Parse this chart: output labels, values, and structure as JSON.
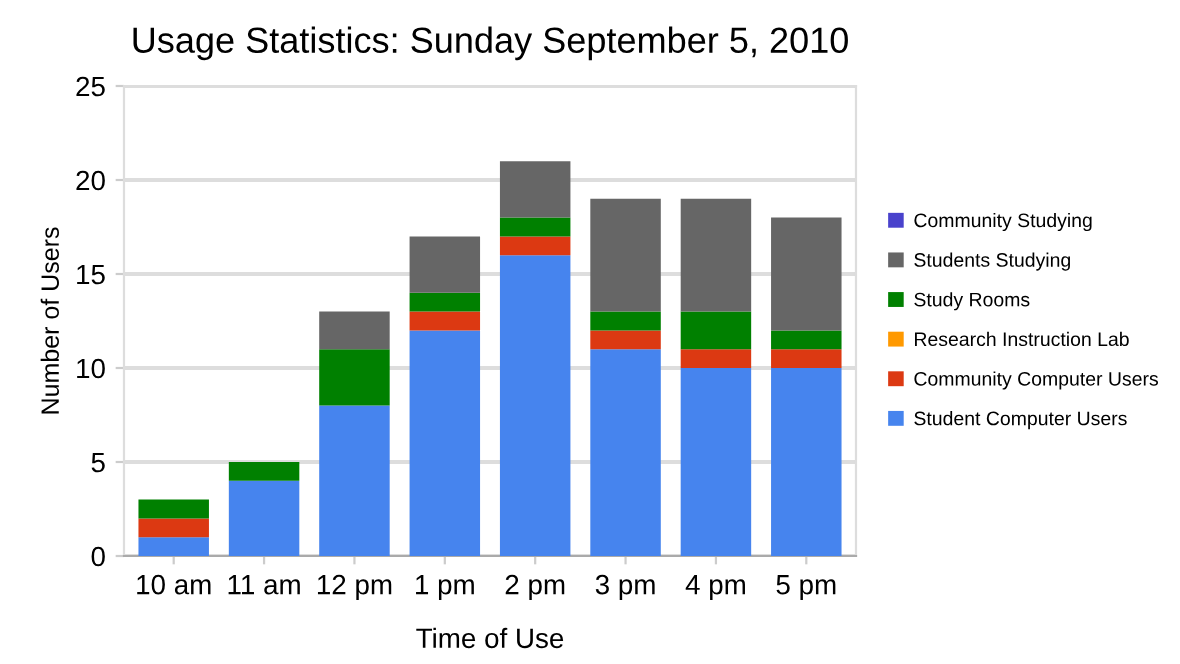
{
  "chart_data": {
    "type": "bar",
    "title": "Usage Statistics: Sunday September 5, 2010",
    "xlabel": "Time of Use",
    "ylabel": "Number of Users",
    "categories": [
      "10 am",
      "11 am",
      "12 pm",
      "1 pm",
      "2 pm",
      "3 pm",
      "4 pm",
      "5 pm"
    ],
    "stacked": true,
    "series": [
      {
        "name": "Student Computer Users",
        "color": "#4684ee",
        "values": [
          1,
          4,
          8,
          12,
          16,
          11,
          10,
          10
        ]
      },
      {
        "name": "Community Computer Users",
        "color": "#dc3912",
        "values": [
          1,
          0,
          0,
          1,
          1,
          1,
          1,
          1
        ]
      },
      {
        "name": "Research Instruction Lab",
        "color": "#ff9900",
        "values": [
          0,
          0,
          0,
          0,
          0,
          0,
          0,
          0
        ]
      },
      {
        "name": "Study Rooms",
        "color": "#008000",
        "values": [
          1,
          1,
          3,
          1,
          1,
          1,
          2,
          1
        ]
      },
      {
        "name": "Students Studying",
        "color": "#666666",
        "values": [
          0,
          0,
          2,
          3,
          3,
          6,
          6,
          6
        ]
      },
      {
        "name": "Community Studying",
        "color": "#4942cc",
        "values": [
          0,
          0,
          0,
          0,
          0,
          0,
          0,
          0
        ]
      }
    ],
    "ylim": [
      0,
      25
    ],
    "yticks": [
      0,
      5,
      10,
      15,
      20,
      25
    ],
    "grid": "y",
    "legend": "right"
  }
}
